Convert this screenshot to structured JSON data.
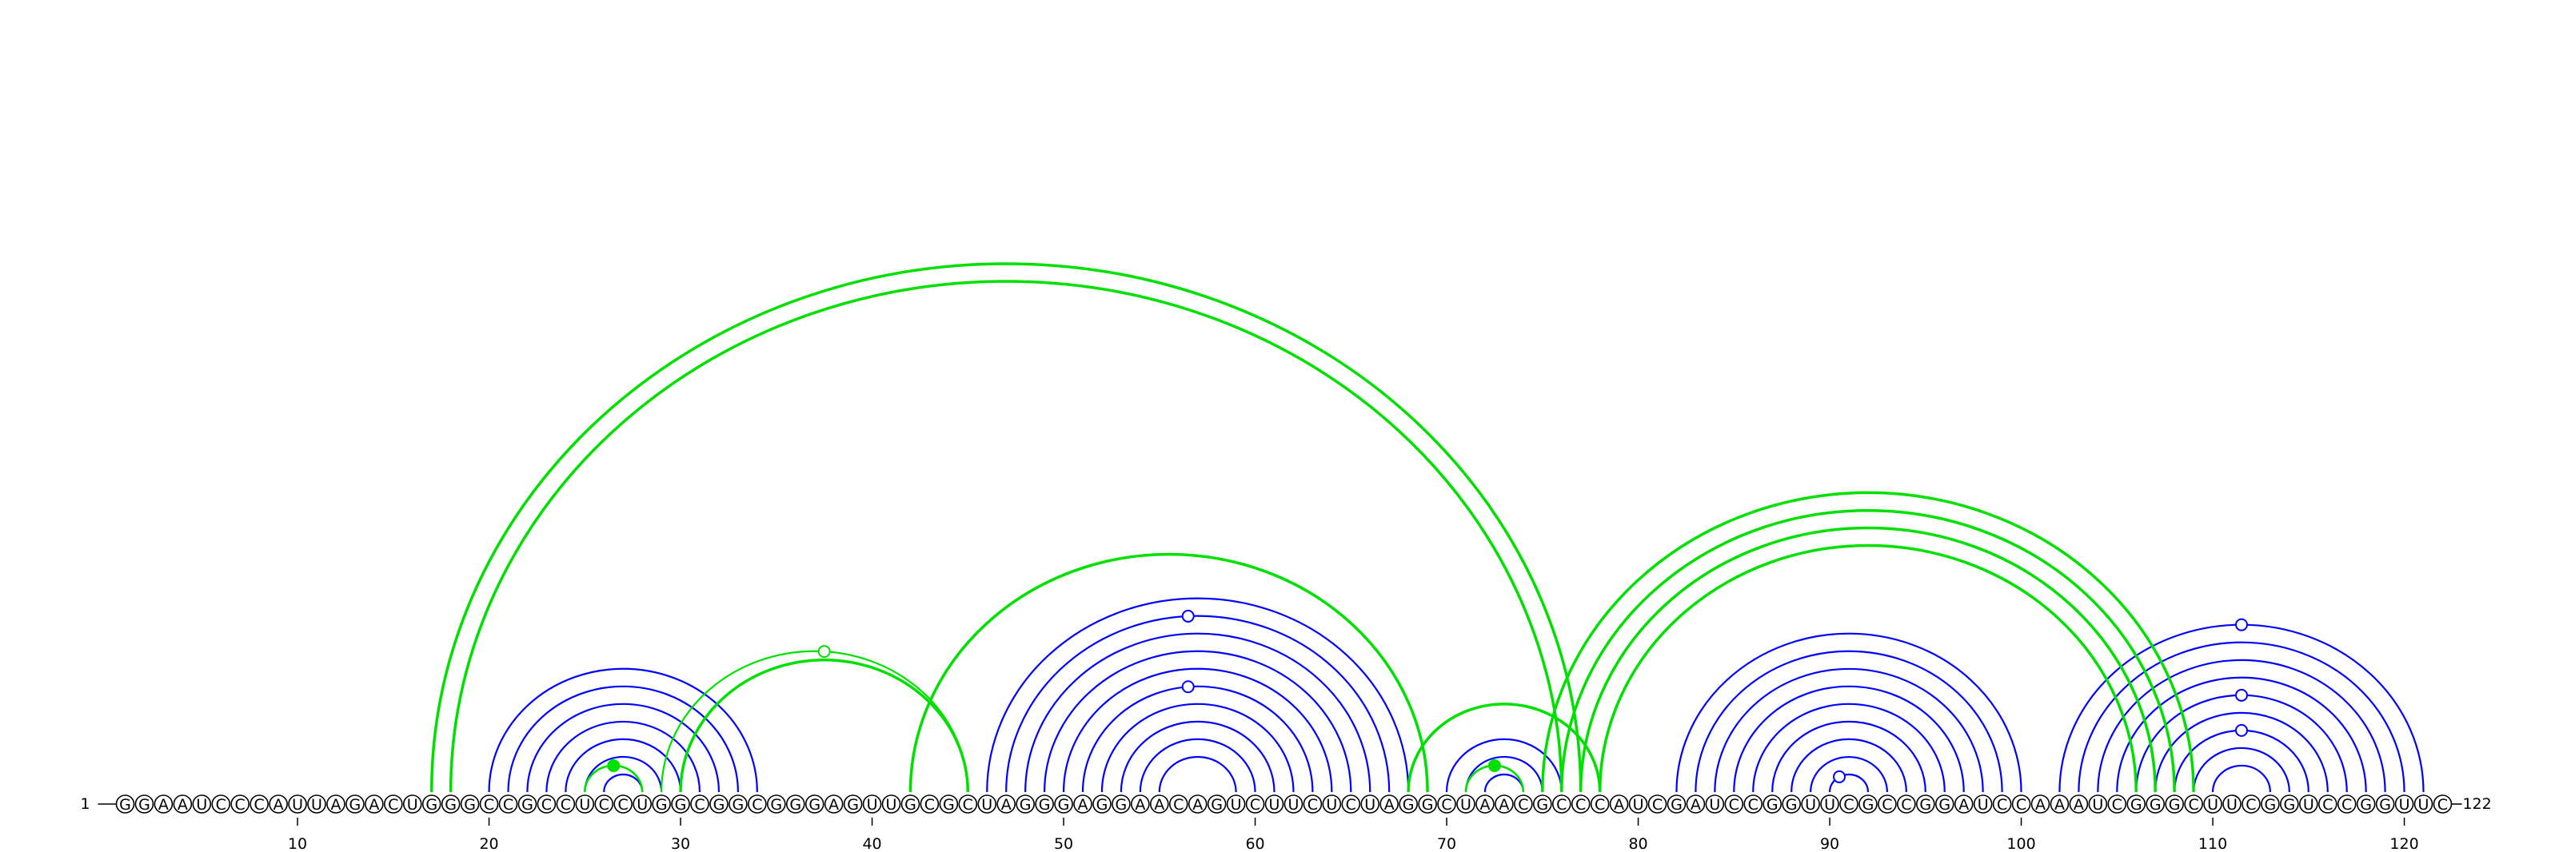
{
  "sequence": "GGAAUCCCAUUAGACUGGGCCGCCUCCUGGCGGCGGGAGUUGCGCUAGGGAGGAACAGUCUUCUCUAGGCUAACGCCCAUCGAUCCGGUUCGCCGGAUCCAAAUCGGGCUUCGGUCCGGUUC",
  "start_label": "1",
  "end_label": "122",
  "tick_labels": [
    "10",
    "20",
    "30",
    "40",
    "50",
    "60",
    "70",
    "80",
    "90",
    "100",
    "110",
    "120"
  ],
  "colors": {
    "blue": "#0000ff",
    "green": "#00e000",
    "text": "#000000"
  },
  "arcs": [
    {
      "i": 20,
      "j": 34,
      "color": "blue"
    },
    {
      "i": 21,
      "j": 33,
      "color": "blue"
    },
    {
      "i": 22,
      "j": 32,
      "color": "blue"
    },
    {
      "i": 23,
      "j": 31,
      "color": "blue"
    },
    {
      "i": 24,
      "j": 30,
      "color": "blue"
    },
    {
      "i": 25,
      "j": 29,
      "color": "blue"
    },
    {
      "i": 26,
      "j": 28,
      "color": "blue"
    },
    {
      "i": 25,
      "j": 28,
      "color": "green",
      "width": 2.6
    },
    {
      "i": 46,
      "j": 68,
      "color": "blue"
    },
    {
      "i": 47,
      "j": 67,
      "color": "blue"
    },
    {
      "i": 48,
      "j": 66,
      "color": "blue"
    },
    {
      "i": 49,
      "j": 65,
      "color": "blue"
    },
    {
      "i": 50,
      "j": 64,
      "color": "blue"
    },
    {
      "i": 51,
      "j": 63,
      "color": "blue"
    },
    {
      "i": 52,
      "j": 62,
      "color": "blue"
    },
    {
      "i": 53,
      "j": 61,
      "color": "blue"
    },
    {
      "i": 54,
      "j": 60,
      "color": "blue"
    },
    {
      "i": 55,
      "j": 59,
      "color": "blue"
    },
    {
      "i": 70,
      "j": 76,
      "color": "blue"
    },
    {
      "i": 71,
      "j": 75,
      "color": "blue"
    },
    {
      "i": 72,
      "j": 74,
      "color": "blue"
    },
    {
      "i": 71,
      "j": 74,
      "color": "green",
      "width": 2.6
    },
    {
      "i": 82,
      "j": 100,
      "color": "blue"
    },
    {
      "i": 83,
      "j": 99,
      "color": "blue"
    },
    {
      "i": 84,
      "j": 98,
      "color": "blue"
    },
    {
      "i": 85,
      "j": 97,
      "color": "blue"
    },
    {
      "i": 86,
      "j": 96,
      "color": "blue"
    },
    {
      "i": 87,
      "j": 95,
      "color": "blue"
    },
    {
      "i": 88,
      "j": 94,
      "color": "blue"
    },
    {
      "i": 89,
      "j": 93,
      "color": "blue"
    },
    {
      "i": 90,
      "j": 92,
      "color": "blue"
    },
    {
      "i": 102,
      "j": 121,
      "color": "blue"
    },
    {
      "i": 103,
      "j": 120,
      "color": "blue"
    },
    {
      "i": 104,
      "j": 119,
      "color": "blue"
    },
    {
      "i": 105,
      "j": 118,
      "color": "blue"
    },
    {
      "i": 106,
      "j": 117,
      "color": "blue"
    },
    {
      "i": 107,
      "j": 116,
      "color": "blue"
    },
    {
      "i": 108,
      "j": 115,
      "color": "blue"
    },
    {
      "i": 109,
      "j": 114,
      "color": "blue"
    },
    {
      "i": 110,
      "j": 113,
      "color": "blue"
    },
    {
      "i": 17,
      "j": 77,
      "color": "green",
      "width": 3.5
    },
    {
      "i": 18,
      "j": 76,
      "color": "green",
      "width": 3.5
    },
    {
      "i": 29,
      "j": 45,
      "color": "green",
      "width": 2.2
    },
    {
      "i": 30,
      "j": 45,
      "color": "green",
      "width": 3.5
    },
    {
      "i": 42,
      "j": 69,
      "color": "green",
      "width": 3.5
    },
    {
      "i": 68,
      "j": 78,
      "color": "green",
      "width": 3.5
    },
    {
      "i": 75,
      "j": 109,
      "color": "green",
      "width": 3.5
    },
    {
      "i": 76,
      "j": 108,
      "color": "green",
      "width": 3.5
    },
    {
      "i": 77,
      "j": 107,
      "color": "green",
      "width": 3.5
    },
    {
      "i": 78,
      "j": 106,
      "color": "green",
      "width": 3.5
    }
  ],
  "markers": [
    {
      "pos": 26.5,
      "arc": 7,
      "color": "green",
      "filled": true
    },
    {
      "pos": 72.5,
      "arc": 21,
      "color": "green",
      "filled": true
    },
    {
      "pos": 37.5,
      "arc": 42,
      "color": "green",
      "filled": false
    },
    {
      "pos": 56.5,
      "arc": 9,
      "color": "blue",
      "filled": false
    },
    {
      "pos": 56.5,
      "arc": 13,
      "color": "blue",
      "filled": false
    },
    {
      "pos": 90.5,
      "arc": 30,
      "color": "blue",
      "filled": false
    },
    {
      "pos": 111.5,
      "arc": 31,
      "color": "blue",
      "filled": false
    },
    {
      "pos": 111.5,
      "arc": 35,
      "color": "blue",
      "filled": false
    },
    {
      "pos": 111.5,
      "arc": 37,
      "color": "blue",
      "filled": false
    }
  ]
}
